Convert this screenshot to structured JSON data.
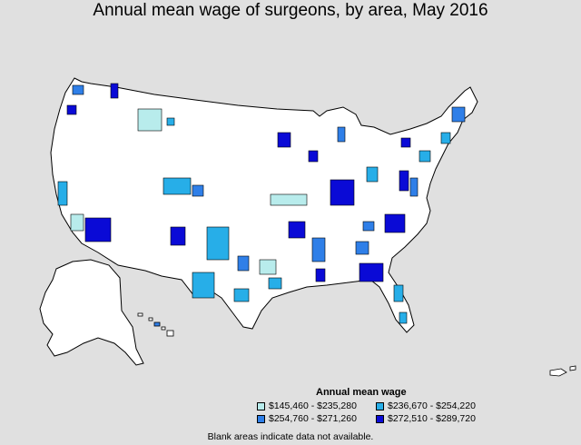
{
  "title": "Annual mean wage of surgeons, by area, May 2016",
  "legend": {
    "title": "Annual mean wage",
    "items": [
      {
        "label": "$145,460 - $235,280",
        "color": "#b8ecec"
      },
      {
        "label": "$236,670 - $254,220",
        "color": "#27aee8"
      },
      {
        "label": "$254,760 - $271,260",
        "color": "#2f7fe8"
      },
      {
        "label": "$272,510 - $289,720",
        "color": "#0a0ad6"
      }
    ]
  },
  "footnote": "Blank areas indicate data not available.",
  "colors": {
    "background": "#e0e0e0",
    "land": "#ffffff",
    "border": "#000000"
  }
}
